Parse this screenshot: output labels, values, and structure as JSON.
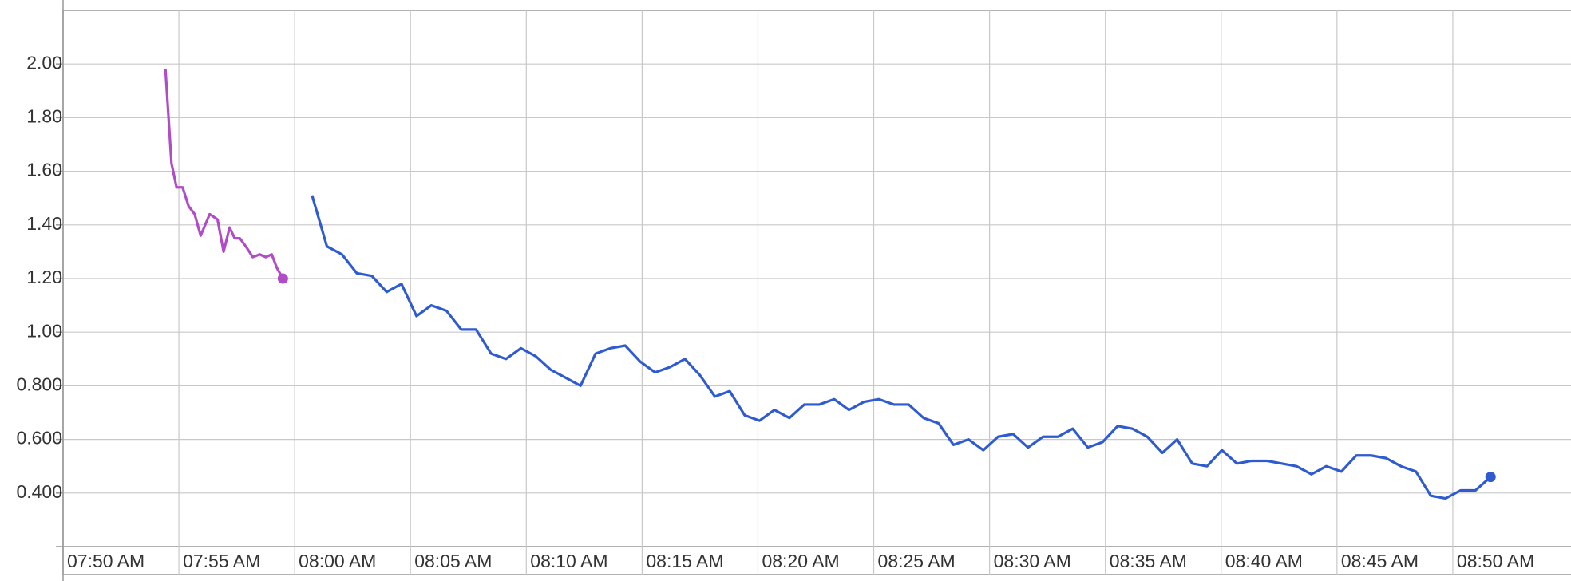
{
  "chart_data": {
    "type": "line",
    "xlim": [
      470,
      535
    ],
    "ylim": [
      0.2,
      2.2
    ],
    "xticks": [
      {
        "value": 470,
        "label": "07:50 AM"
      },
      {
        "value": 475,
        "label": "07:55 AM"
      },
      {
        "value": 480,
        "label": "08:00 AM"
      },
      {
        "value": 485,
        "label": "08:05 AM"
      },
      {
        "value": 490,
        "label": "08:10 AM"
      },
      {
        "value": 495,
        "label": "08:15 AM"
      },
      {
        "value": 500,
        "label": "08:20 AM"
      },
      {
        "value": 505,
        "label": "08:25 AM"
      },
      {
        "value": 510,
        "label": "08:30 AM"
      },
      {
        "value": 515,
        "label": "08:35 AM"
      },
      {
        "value": 520,
        "label": "08:40 AM"
      },
      {
        "value": 525,
        "label": "08:45 AM"
      },
      {
        "value": 530,
        "label": "08:50 AM"
      }
    ],
    "yticks": [
      {
        "value": 2,
        "label": "2.00"
      },
      {
        "value": 1.8,
        "label": "1.80"
      },
      {
        "value": 1.6,
        "label": "1.60"
      },
      {
        "value": 1.4,
        "label": "1.40"
      },
      {
        "value": 1.2,
        "label": "1.20"
      },
      {
        "value": 1,
        "label": "1.00"
      },
      {
        "value": 0.8,
        "label": "0.800"
      },
      {
        "value": 0.6,
        "label": "0.600"
      },
      {
        "value": 0.4,
        "label": "0.400"
      }
    ],
    "grid": true,
    "series": [
      {
        "color": "#b04cc8",
        "x": [
          474.42,
          474.68,
          474.9,
          475.16,
          475.42,
          475.68,
          475.94,
          476.33,
          476.67,
          476.93,
          477.19,
          477.41,
          477.63,
          477.89,
          478.19,
          478.49,
          478.75,
          479.01,
          479.23,
          479.49
        ],
        "values": [
          1.98,
          1.63,
          1.54,
          1.54,
          1.47,
          1.44,
          1.36,
          1.44,
          1.42,
          1.3,
          1.39,
          1.35,
          1.35,
          1.32,
          1.28,
          1.29,
          1.28,
          1.29,
          1.24,
          1.2
        ]
      },
      {
        "color": "#2f5bd0",
        "x": [
          480.75,
          481.39,
          482.04,
          482.68,
          483.33,
          483.97,
          484.61,
          485.26,
          485.9,
          486.55,
          487.19,
          487.83,
          488.48,
          489.12,
          489.77,
          490.41,
          491.05,
          491.7,
          492.34,
          492.99,
          493.63,
          494.27,
          494.92,
          495.56,
          496.21,
          496.85,
          497.49,
          498.14,
          498.78,
          499.43,
          500.07,
          500.71,
          501.36,
          502.0,
          502.65,
          503.29,
          503.93,
          504.58,
          505.22,
          505.87,
          506.51,
          507.15,
          507.8,
          508.44,
          509.09,
          509.73,
          510.37,
          511.02,
          511.66,
          512.31,
          512.95,
          513.59,
          514.24,
          514.88,
          515.53,
          516.17,
          516.81,
          517.46,
          518.1,
          518.75,
          519.39,
          520.03,
          520.68,
          521.32,
          521.97,
          522.61,
          523.25,
          523.9,
          524.54,
          525.19,
          525.83,
          526.47,
          527.12,
          527.76,
          528.41,
          529.05,
          529.69,
          530.34,
          530.98,
          531.63
        ],
        "values": [
          1.51,
          1.32,
          1.29,
          1.22,
          1.21,
          1.15,
          1.18,
          1.06,
          1.1,
          1.08,
          1.01,
          1.01,
          0.92,
          0.9,
          0.94,
          0.91,
          0.86,
          0.83,
          0.8,
          0.92,
          0.94,
          0.95,
          0.89,
          0.85,
          0.87,
          0.9,
          0.84,
          0.76,
          0.78,
          0.69,
          0.67,
          0.71,
          0.68,
          0.73,
          0.73,
          0.75,
          0.71,
          0.74,
          0.75,
          0.73,
          0.73,
          0.68,
          0.66,
          0.58,
          0.6,
          0.56,
          0.61,
          0.62,
          0.57,
          0.61,
          0.61,
          0.64,
          0.57,
          0.59,
          0.65,
          0.64,
          0.61,
          0.55,
          0.6,
          0.51,
          0.5,
          0.56,
          0.51,
          0.52,
          0.52,
          0.51,
          0.5,
          0.47,
          0.5,
          0.48,
          0.54,
          0.54,
          0.53,
          0.5,
          0.48,
          0.39,
          0.38,
          0.41,
          0.41,
          0.46
        ]
      }
    ]
  }
}
